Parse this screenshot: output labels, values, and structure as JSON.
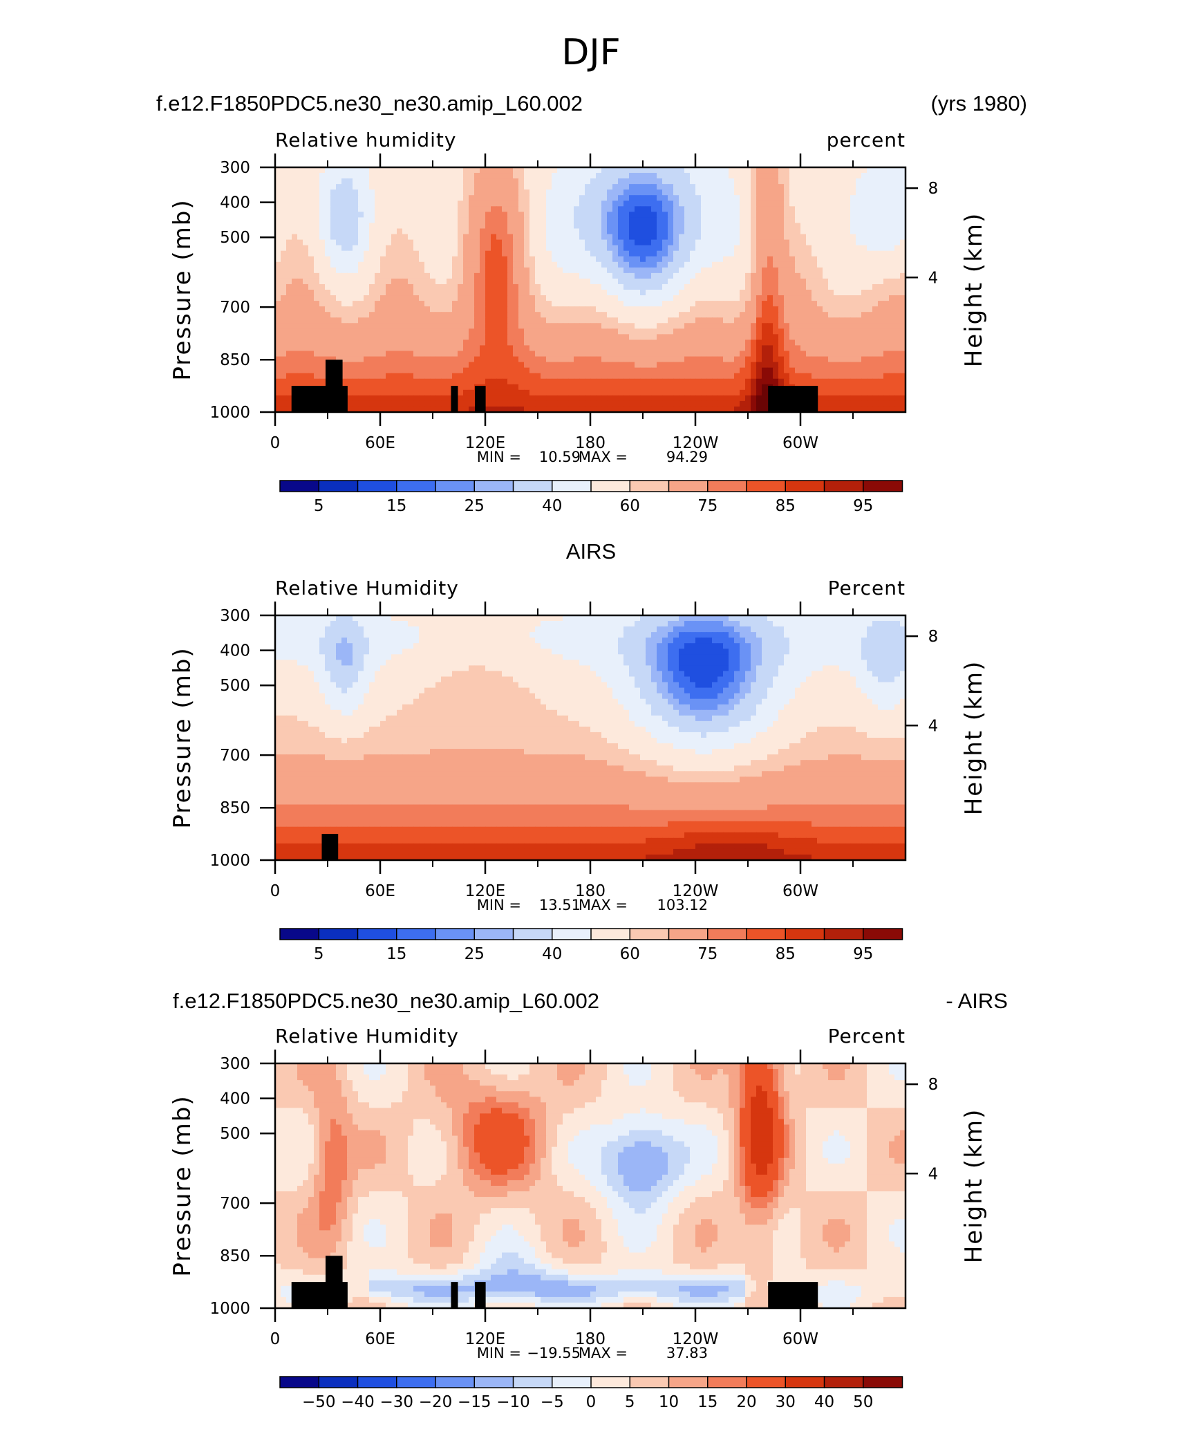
{
  "figure": {
    "title": "DJF"
  },
  "chart_data": [
    {
      "type": "heatmap",
      "name": "model",
      "header_left": "f.e12.F1850PDC5.ne30_ne30.amip_L60.002",
      "header_right": "(yrs 1980)",
      "left_title": "Relative humidity",
      "right_title": "percent",
      "ylabel": "Pressure (mb)",
      "y2label": "Height (km)",
      "y_ticks": [
        "300",
        "400",
        "500",
        "700",
        "850",
        "1000"
      ],
      "y2_ticks": [
        "8",
        "4"
      ],
      "x_ticks": [
        "0",
        "60E",
        "120E",
        "180",
        "120W",
        "60W"
      ],
      "min_label": "MIN =",
      "min_value": "10.59",
      "max_label": "MAX =",
      "max_value": "94.29",
      "colorbar": [
        "5",
        "15",
        "25",
        "40",
        "60",
        "75",
        "85",
        "95"
      ],
      "palette": "abs"
    },
    {
      "type": "heatmap",
      "name": "obs",
      "header_center": "AIRS",
      "left_title": "Relative Humidity",
      "right_title": "Percent",
      "ylabel": "Pressure (mb)",
      "y2label": "Height (km)",
      "y_ticks": [
        "300",
        "400",
        "500",
        "700",
        "850",
        "1000"
      ],
      "y2_ticks": [
        "8",
        "4"
      ],
      "x_ticks": [
        "0",
        "60E",
        "120E",
        "180",
        "120W",
        "60W"
      ],
      "min_label": "MIN =",
      "min_value": "13.51",
      "max_label": "MAX =",
      "max_value": "103.12",
      "colorbar": [
        "5",
        "15",
        "25",
        "40",
        "60",
        "75",
        "85",
        "95"
      ],
      "palette": "abs"
    },
    {
      "type": "heatmap",
      "name": "diff",
      "header_left": "f.e12.F1850PDC5.ne30_ne30.amip_L60.002",
      "header_right": "- AIRS",
      "left_title": "Relative Humidity",
      "right_title": "Percent",
      "ylabel": "Pressure (mb)",
      "y2label": "Height (km)",
      "y_ticks": [
        "300",
        "400",
        "500",
        "700",
        "850",
        "1000"
      ],
      "y2_ticks": [
        "8",
        "4"
      ],
      "x_ticks": [
        "0",
        "60E",
        "120E",
        "180",
        "120W",
        "60W"
      ],
      "min_label": "MIN =",
      "min_value": "−19.55",
      "max_label": "MAX =",
      "max_value": "37.83",
      "colorbar": [
        "−50",
        "−40",
        "−30",
        "−20",
        "−15",
        "−10",
        "−5",
        "0",
        "5",
        "10",
        "15",
        "20",
        "30",
        "40",
        "50"
      ],
      "palette": "diff"
    }
  ],
  "colors": {
    "abs_scale": [
      "#08088a",
      "#0a2fbf",
      "#1f4fe0",
      "#3d6ef0",
      "#6a92f5",
      "#9bb6f7",
      "#c6d8f7",
      "#e8f0fb",
      "#fde9dc",
      "#fac9b2",
      "#f6a588",
      "#f27c5a",
      "#ec5428",
      "#d6360f",
      "#b3200a",
      "#8a0a06",
      "#6a0404"
    ],
    "diff_scale": [
      "#08088a",
      "#0a2fbf",
      "#1f4fe0",
      "#3d6ef0",
      "#6a92f5",
      "#9bb6f7",
      "#c6d8f7",
      "#e8f0fb",
      "#fde9dc",
      "#fac9b2",
      "#f6a588",
      "#f27c5a",
      "#ec5428",
      "#d6360f",
      "#b3200a",
      "#8a0a06"
    ],
    "terrain": "#000000"
  }
}
